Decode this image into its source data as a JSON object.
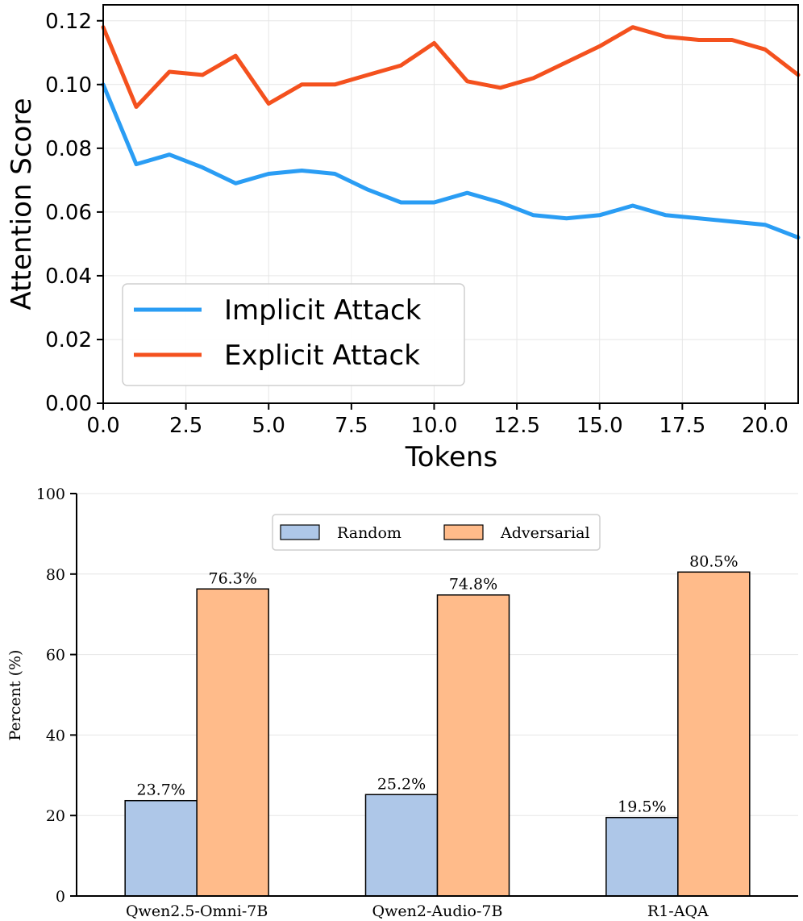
{
  "chart_data": [
    {
      "type": "line",
      "xlabel": "Tokens",
      "ylabel": "Attention Score",
      "xlim": [
        0,
        21
      ],
      "ylim": [
        0,
        0.125
      ],
      "xticks": [
        "0.0",
        "2.5",
        "5.0",
        "7.5",
        "10.0",
        "12.5",
        "15.0",
        "17.5",
        "20.0"
      ],
      "yticks": [
        "0.00",
        "0.02",
        "0.04",
        "0.06",
        "0.08",
        "0.10",
        "0.12"
      ],
      "grid": true,
      "legend_position": "lower-left",
      "x": [
        0,
        1,
        2,
        3,
        4,
        5,
        6,
        7,
        8,
        9,
        10,
        11,
        12,
        13,
        14,
        15,
        16,
        17,
        18,
        19,
        20,
        21
      ],
      "series": [
        {
          "name": "Implicit Attack",
          "color": "#2a9df4",
          "values": [
            0.1,
            0.075,
            0.078,
            0.074,
            0.069,
            0.072,
            0.073,
            0.072,
            0.067,
            0.063,
            0.063,
            0.066,
            0.063,
            0.059,
            0.058,
            0.059,
            0.062,
            0.059,
            0.058,
            0.057,
            0.056,
            0.052
          ]
        },
        {
          "name": "Explicit Attack",
          "color": "#f4511e",
          "values": [
            0.118,
            0.093,
            0.104,
            0.103,
            0.109,
            0.094,
            0.1,
            0.1,
            0.103,
            0.106,
            0.113,
            0.101,
            0.099,
            0.102,
            0.107,
            0.112,
            0.118,
            0.115,
            0.114,
            0.114,
            0.111,
            0.103
          ]
        }
      ]
    },
    {
      "type": "bar",
      "ylabel": "Percent (%)",
      "ylim": [
        0,
        100
      ],
      "yticks": [
        "0",
        "20",
        "40",
        "60",
        "80",
        "100"
      ],
      "grid": true,
      "legend_position": "top-center",
      "categories": [
        "Qwen2.5-Omni-7B",
        "Qwen2-Audio-7B",
        "R1-AQA"
      ],
      "series": [
        {
          "name": "Random",
          "color": "#aec7e8",
          "values": [
            23.7,
            25.2,
            19.5
          ],
          "labels": [
            "23.7%",
            "25.2%",
            "19.5%"
          ]
        },
        {
          "name": "Adversarial",
          "color": "#ffbb8a",
          "values": [
            76.3,
            74.8,
            80.5
          ],
          "labels": [
            "76.3%",
            "74.8%",
            "80.5%"
          ]
        }
      ]
    }
  ]
}
